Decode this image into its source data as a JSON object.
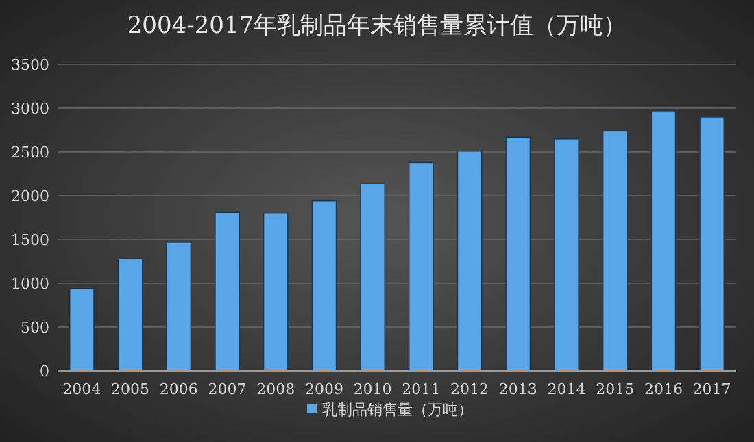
{
  "chart_data": {
    "type": "bar",
    "title": "2004-2017年乳制品年末销售量累计值（万吨）",
    "categories": [
      "2004",
      "2005",
      "2006",
      "2007",
      "2008",
      "2009",
      "2010",
      "2011",
      "2012",
      "2013",
      "2014",
      "2015",
      "2016",
      "2017"
    ],
    "series": [
      {
        "name": "乳制品销售量（万吨）",
        "color": "#5aa5e6",
        "values": [
          940,
          1280,
          1470,
          1810,
          1800,
          1940,
          2140,
          2380,
          2510,
          2670,
          2650,
          2740,
          2970,
          2900
        ]
      }
    ],
    "ylim": [
      0,
      3500
    ],
    "yticks": [
      0,
      500,
      1000,
      1500,
      2000,
      2500,
      3000,
      3500
    ],
    "grid": "y",
    "legend": "bottom"
  }
}
